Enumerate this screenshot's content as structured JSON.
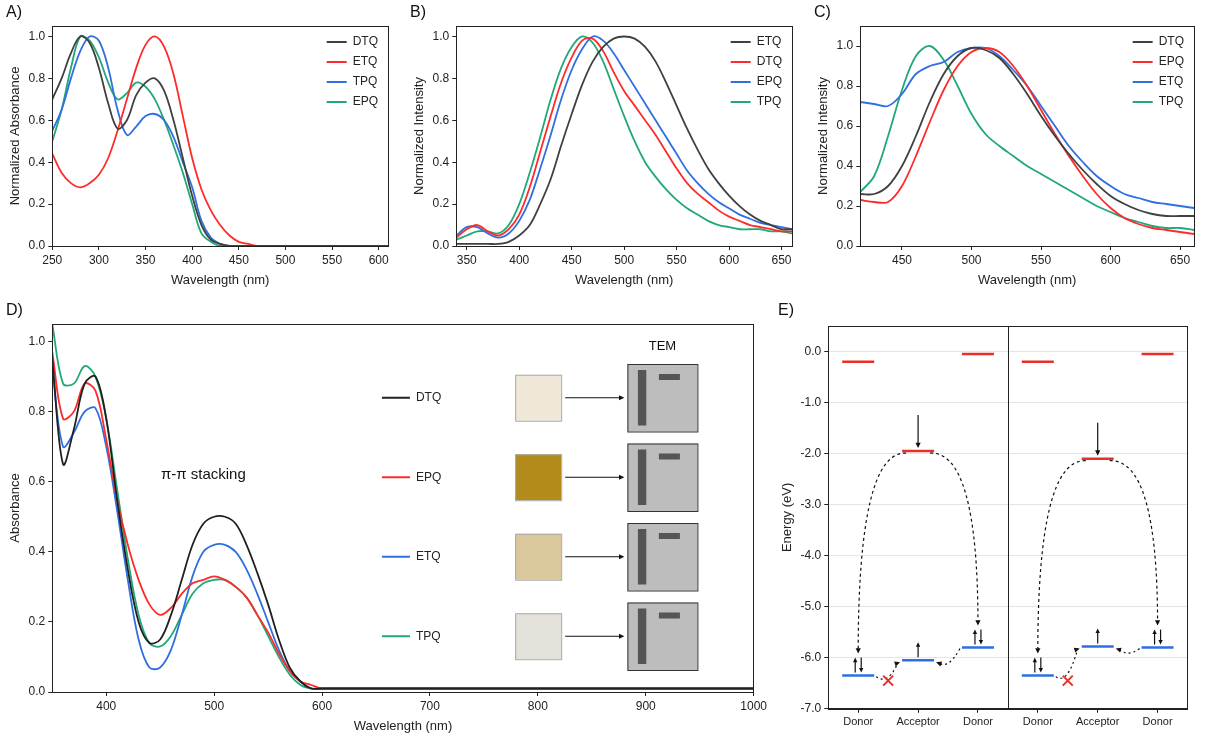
{
  "chart_data": [
    {
      "panel": "A)",
      "type": "line",
      "x_label": "Wavelength (nm)",
      "y_label": "Normalized Absorbance",
      "x": [
        250,
        260,
        270,
        280,
        290,
        300,
        310,
        320,
        330,
        340,
        350,
        360,
        370,
        380,
        390,
        400,
        410,
        420,
        430,
        440,
        450,
        460,
        470,
        500,
        550,
        600,
        610
      ],
      "xlim": [
        250,
        610
      ],
      "xticks": [
        250,
        300,
        350,
        400,
        450,
        500,
        550,
        600
      ],
      "ylim": [
        0,
        1.05
      ],
      "yticks": [
        {
          "value": 0,
          "label": "0.0"
        },
        {
          "value": 0.2,
          "label": "0.2"
        },
        {
          "value": 0.4,
          "label": "0.4"
        },
        {
          "value": 0.6,
          "label": "0.6"
        },
        {
          "value": 0.8,
          "label": "0.8"
        },
        {
          "value": 1,
          "label": "1.0"
        }
      ],
      "grid": false,
      "legend": "upper right",
      "series": [
        {
          "name": "DTQ",
          "color": "#404040",
          "values": [
            0.7,
            0.8,
            0.92,
            1.0,
            0.97,
            0.85,
            0.68,
            0.56,
            0.6,
            0.72,
            0.78,
            0.8,
            0.74,
            0.6,
            0.42,
            0.24,
            0.1,
            0.03,
            0.01,
            0,
            0,
            0,
            0,
            0,
            0,
            0,
            0
          ]
        },
        {
          "name": "ETQ",
          "color": "#ff2a2a",
          "values": [
            0.44,
            0.35,
            0.3,
            0.28,
            0.3,
            0.34,
            0.42,
            0.55,
            0.7,
            0.85,
            0.96,
            1.0,
            0.95,
            0.82,
            0.62,
            0.42,
            0.27,
            0.17,
            0.1,
            0.05,
            0.02,
            0.01,
            0,
            0,
            0,
            0,
            0
          ]
        },
        {
          "name": "TPQ",
          "color": "#2f6fe0",
          "values": [
            0.55,
            0.65,
            0.8,
            0.93,
            1.0,
            0.98,
            0.85,
            0.65,
            0.53,
            0.57,
            0.62,
            0.63,
            0.6,
            0.52,
            0.4,
            0.28,
            0.12,
            0.04,
            0.01,
            0,
            0,
            0,
            0,
            0,
            0,
            0,
            0
          ]
        },
        {
          "name": "EPQ",
          "color": "#20a878",
          "values": [
            0.5,
            0.65,
            0.85,
            1.0,
            0.98,
            0.9,
            0.78,
            0.7,
            0.73,
            0.78,
            0.76,
            0.7,
            0.6,
            0.48,
            0.35,
            0.2,
            0.06,
            0.02,
            0,
            0,
            0,
            0,
            0,
            0,
            0,
            0,
            0
          ]
        }
      ]
    },
    {
      "panel": "B)",
      "type": "line",
      "x_label": "Wavelength (nm)",
      "y_label": "Normalized Intensity",
      "x": [
        340,
        350,
        360,
        370,
        380,
        390,
        400,
        410,
        420,
        430,
        440,
        450,
        460,
        470,
        480,
        490,
        500,
        510,
        520,
        530,
        540,
        550,
        560,
        570,
        580,
        590,
        600,
        610,
        620,
        630,
        640,
        650,
        660
      ],
      "xlim": [
        340,
        660
      ],
      "xticks": [
        350,
        400,
        450,
        500,
        550,
        600,
        650
      ],
      "ylim": [
        0,
        1.05
      ],
      "yticks": [
        {
          "value": 0,
          "label": "0.0"
        },
        {
          "value": 0.2,
          "label": "0.2"
        },
        {
          "value": 0.4,
          "label": "0.4"
        },
        {
          "value": 0.6,
          "label": "0.6"
        },
        {
          "value": 0.8,
          "label": "0.8"
        },
        {
          "value": 1,
          "label": "1.0"
        }
      ],
      "grid": false,
      "legend": "upper right",
      "series": [
        {
          "name": "ETQ",
          "color": "#404040",
          "values": [
            0.01,
            0.01,
            0.01,
            0.01,
            0.01,
            0.02,
            0.05,
            0.1,
            0.2,
            0.32,
            0.48,
            0.63,
            0.77,
            0.88,
            0.95,
            0.99,
            1.0,
            0.99,
            0.95,
            0.88,
            0.78,
            0.67,
            0.56,
            0.46,
            0.37,
            0.3,
            0.24,
            0.19,
            0.15,
            0.12,
            0.1,
            0.08,
            0.08
          ]
        },
        {
          "name": "DTQ",
          "color": "#ff2a2a",
          "values": [
            0.04,
            0.08,
            0.1,
            0.07,
            0.05,
            0.08,
            0.15,
            0.28,
            0.45,
            0.62,
            0.78,
            0.9,
            0.98,
            0.99,
            0.93,
            0.83,
            0.74,
            0.67,
            0.6,
            0.53,
            0.45,
            0.37,
            0.3,
            0.25,
            0.21,
            0.17,
            0.14,
            0.12,
            0.1,
            0.09,
            0.08,
            0.07,
            0.07
          ]
        },
        {
          "name": "EPQ",
          "color": "#2f6fe0",
          "values": [
            0.05,
            0.09,
            0.09,
            0.06,
            0.04,
            0.06,
            0.12,
            0.22,
            0.37,
            0.53,
            0.7,
            0.84,
            0.94,
            1.0,
            0.98,
            0.92,
            0.84,
            0.76,
            0.68,
            0.6,
            0.52,
            0.44,
            0.36,
            0.3,
            0.25,
            0.21,
            0.18,
            0.15,
            0.13,
            0.11,
            0.1,
            0.09,
            0.08
          ]
        },
        {
          "name": "TPQ",
          "color": "#20a878",
          "values": [
            0.03,
            0.05,
            0.07,
            0.07,
            0.06,
            0.1,
            0.2,
            0.35,
            0.52,
            0.7,
            0.85,
            0.95,
            1.0,
            0.97,
            0.88,
            0.75,
            0.62,
            0.5,
            0.4,
            0.33,
            0.27,
            0.22,
            0.18,
            0.15,
            0.12,
            0.1,
            0.09,
            0.08,
            0.08,
            0.08,
            0.07,
            0.07,
            0.06
          ]
        }
      ]
    },
    {
      "panel": "C)",
      "type": "line",
      "x_label": "Wavelength (nm)",
      "y_label": "Normalized Intensity",
      "x": [
        420,
        430,
        440,
        450,
        460,
        470,
        480,
        490,
        500,
        510,
        520,
        530,
        540,
        550,
        560,
        570,
        580,
        590,
        600,
        610,
        620,
        630,
        640,
        650,
        660
      ],
      "xlim": [
        420,
        660
      ],
      "xticks": [
        450,
        500,
        550,
        600,
        650
      ],
      "ylim": [
        0,
        1.1
      ],
      "yticks": [
        {
          "value": 0,
          "label": "0.0"
        },
        {
          "value": 0.2,
          "label": "0.2"
        },
        {
          "value": 0.4,
          "label": "0.4"
        },
        {
          "value": 0.6,
          "label": "0.6"
        },
        {
          "value": 0.8,
          "label": "0.8"
        },
        {
          "value": 1,
          "label": "1.0"
        }
      ],
      "grid": false,
      "legend": "upper right",
      "series": [
        {
          "name": "DTQ",
          "color": "#404040",
          "values": [
            0.26,
            0.26,
            0.3,
            0.4,
            0.55,
            0.72,
            0.86,
            0.95,
            0.99,
            0.98,
            0.94,
            0.86,
            0.76,
            0.65,
            0.55,
            0.46,
            0.38,
            0.31,
            0.25,
            0.21,
            0.18,
            0.16,
            0.15,
            0.15,
            0.15
          ]
        },
        {
          "name": "EPQ",
          "color": "#ff2a2a",
          "values": [
            0.23,
            0.22,
            0.22,
            0.3,
            0.45,
            0.62,
            0.78,
            0.9,
            0.97,
            0.99,
            0.97,
            0.9,
            0.8,
            0.68,
            0.56,
            0.45,
            0.35,
            0.26,
            0.19,
            0.14,
            0.11,
            0.09,
            0.08,
            0.07,
            0.06
          ]
        },
        {
          "name": "ETQ",
          "color": "#2f6fe0",
          "values": [
            0.72,
            0.71,
            0.7,
            0.76,
            0.86,
            0.9,
            0.92,
            0.97,
            0.99,
            0.99,
            0.95,
            0.88,
            0.8,
            0.7,
            0.6,
            0.5,
            0.42,
            0.35,
            0.3,
            0.26,
            0.24,
            0.22,
            0.21,
            0.2,
            0.19
          ]
        },
        {
          "name": "TPQ",
          "color": "#20a878",
          "values": [
            0.27,
            0.35,
            0.55,
            0.78,
            0.95,
            1.0,
            0.93,
            0.8,
            0.66,
            0.56,
            0.5,
            0.45,
            0.4,
            0.36,
            0.32,
            0.28,
            0.24,
            0.2,
            0.17,
            0.14,
            0.12,
            0.1,
            0.09,
            0.09,
            0.08
          ]
        }
      ]
    },
    {
      "panel": "D)",
      "type": "line",
      "x_label": "Wavelength (nm)",
      "y_label": "Absorbance",
      "annotations": [
        "π-π stacking",
        "TEM"
      ],
      "x": [
        350,
        360,
        370,
        380,
        390,
        400,
        410,
        420,
        430,
        440,
        450,
        460,
        470,
        480,
        490,
        500,
        510,
        520,
        530,
        540,
        550,
        560,
        570,
        580,
        590,
        600,
        610,
        620,
        650,
        700,
        750,
        800,
        850,
        900,
        950,
        1000
      ],
      "xlim": [
        350,
        1000
      ],
      "xticks": [
        400,
        500,
        600,
        700,
        800,
        900,
        1000
      ],
      "ylim": [
        0,
        1.05
      ],
      "yticks": [
        {
          "value": 0,
          "label": "0.0"
        },
        {
          "value": 0.2,
          "label": "0.2"
        },
        {
          "value": 0.4,
          "label": "0.4"
        },
        {
          "value": 0.6,
          "label": "0.6"
        },
        {
          "value": 0.8,
          "label": "0.8"
        },
        {
          "value": 1,
          "label": "1.0"
        }
      ],
      "grid": false,
      "legend": "right",
      "series": [
        {
          "name": "DTQ",
          "color": "#202020",
          "values": [
            0.95,
            0.65,
            0.75,
            0.88,
            0.9,
            0.78,
            0.55,
            0.35,
            0.2,
            0.14,
            0.15,
            0.22,
            0.32,
            0.42,
            0.48,
            0.5,
            0.5,
            0.48,
            0.42,
            0.34,
            0.25,
            0.15,
            0.07,
            0.03,
            0.01,
            0.01,
            0.01,
            0.01,
            0.01,
            0.01,
            0.01,
            0.01,
            0.01,
            0.01,
            0.01,
            0.01
          ]
        },
        {
          "name": "EPQ",
          "color": "#ff2a2a",
          "values": [
            0.97,
            0.78,
            0.8,
            0.88,
            0.86,
            0.72,
            0.55,
            0.42,
            0.32,
            0.25,
            0.22,
            0.24,
            0.28,
            0.31,
            0.32,
            0.33,
            0.32,
            0.3,
            0.27,
            0.22,
            0.17,
            0.11,
            0.06,
            0.03,
            0.02,
            0.01,
            0.01,
            0.01,
            0.01,
            0.01,
            0.01,
            0.01,
            0.01,
            0.01,
            0.01,
            0.01
          ]
        },
        {
          "name": "ETQ",
          "color": "#2f6fe0",
          "values": [
            0.92,
            0.7,
            0.74,
            0.8,
            0.81,
            0.7,
            0.52,
            0.32,
            0.15,
            0.07,
            0.07,
            0.12,
            0.22,
            0.33,
            0.4,
            0.42,
            0.42,
            0.4,
            0.35,
            0.28,
            0.2,
            0.12,
            0.06,
            0.03,
            0.01,
            0.01,
            0.01,
            0.01,
            0.01,
            0.01,
            0.01,
            0.01,
            0.01,
            0.01,
            0.01,
            0.01
          ]
        },
        {
          "name": "TPQ",
          "color": "#20a878",
          "values": [
            1.05,
            0.88,
            0.88,
            0.93,
            0.9,
            0.78,
            0.58,
            0.38,
            0.22,
            0.14,
            0.13,
            0.16,
            0.22,
            0.28,
            0.31,
            0.32,
            0.32,
            0.3,
            0.27,
            0.22,
            0.16,
            0.1,
            0.05,
            0.02,
            0.01,
            0.01,
            0.01,
            0.01,
            0.01,
            0.01,
            0.01,
            0.01,
            0.01,
            0.01,
            0.01,
            0.01
          ]
        }
      ]
    },
    {
      "panel": "E)",
      "type": "scatter",
      "y_label": "Energy (eV)",
      "categories": [
        "Donor",
        "Acceptor",
        "Donor",
        "Donor",
        "Acceptor",
        "Donor"
      ],
      "ylim": [
        -7,
        0.5
      ],
      "yticks": [
        {
          "value": 0,
          "label": "0.0"
        },
        {
          "value": -1,
          "label": "-1.0"
        },
        {
          "value": -2,
          "label": "-2.0"
        },
        {
          "value": -3,
          "label": "-3.0"
        },
        {
          "value": -4,
          "label": "-4.0"
        },
        {
          "value": -5,
          "label": "-5.0"
        },
        {
          "value": -6,
          "label": "-6.0"
        },
        {
          "value": -7,
          "label": "-7.0"
        }
      ],
      "grid": true,
      "series": [
        {
          "color": "#e8302a",
          "marker": "line",
          "values": [
            -0.2,
            -1.95,
            -0.05,
            -0.2,
            -2.1,
            -0.05
          ]
        },
        {
          "color": "#2f6fe0",
          "marker": "line",
          "values": [
            -6.35,
            -6.05,
            -5.8,
            -6.35,
            -5.78,
            -5.8
          ]
        }
      ]
    }
  ]
}
